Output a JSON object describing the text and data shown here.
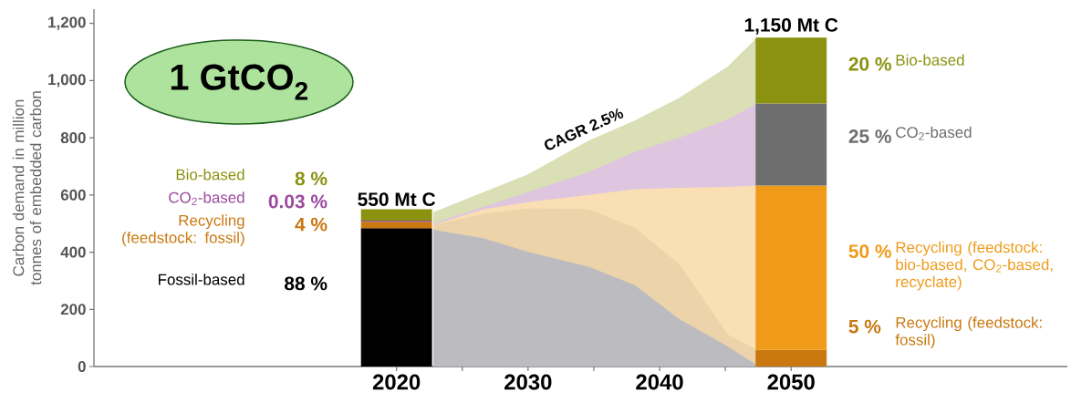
{
  "chart_data": {
    "type": "bar",
    "ylabel": "Carbon demand in million tonnes of embedded carbon",
    "xlim": [
      1997,
      2071
    ],
    "ylim": [
      0,
      1250
    ],
    "xticks": [
      2020,
      {
        "value": 2025,
        "label": null
      },
      2030,
      {
        "value": 2035,
        "label": null
      },
      2040,
      {
        "value": 2045,
        "label": null
      },
      2050
    ],
    "yticks": [
      0,
      200,
      400,
      600,
      800,
      {
        "value": 1000,
        "label": "1,000"
      },
      {
        "value": 1200,
        "label": "1,200"
      }
    ],
    "annotations": [
      "88 %",
      "4 %",
      "0.03 %",
      "8 %",
      "5 %",
      "50 %",
      "25 %",
      "20 %",
      {
        "text": "550 Mt C",
        "x": 2020,
        "y": 550
      },
      {
        "text": "1,150 Mt C",
        "x": 2050,
        "y": 1150
      },
      {
        "text": "CAGR 2.5%",
        "x": 2034.6,
        "y": 790
      },
      "1 GtCO$_{2}$"
    ],
    "series": [
      {
        "type": "area",
        "x": [
          2022.8,
          2030,
          2034.6,
          2038.1,
          2041.5,
          2045.2,
          2047.4
        ],
        "values": [
          540,
          672,
          790,
          860,
          940,
          1050,
          1150
        ],
        "color": "#dadfb6"
      },
      {
        "type": "area",
        "x": [
          2022.8,
          2034.6,
          2038.1,
          2041.5,
          2045.2,
          2047.4
        ],
        "values": [
          500,
          680,
          750,
          800,
          865,
          920
        ],
        "color": "#dfc6e0"
      },
      {
        "type": "area",
        "x": [
          2022.8,
          2026.6,
          2030,
          2034.6,
          2038.1,
          2041.5,
          2045.2,
          2047.4
        ],
        "values": [
          495,
          550,
          575,
          600,
          620,
          625,
          628,
          633
        ],
        "color": "#f9dfb3"
      },
      {
        "type": "area",
        "x": [
          2022.8,
          2026.6,
          2030,
          2034.6,
          2038.1,
          2041.5,
          2045.2,
          2047.4
        ],
        "values": [
          495,
          534,
          553,
          550,
          486,
          358,
          112,
          58
        ],
        "color": "#ecd3a9"
      },
      {
        "type": "area",
        "x": [
          2022.8,
          2026.6,
          2030,
          2034.6,
          2038.1,
          2041.5,
          2045.2,
          2047.4
        ],
        "values": [
          478,
          449,
          401,
          349,
          285,
          166,
          70,
          5
        ],
        "color": "#bcbcc0"
      },
      {
        "name": "Fossil-based",
        "x": [
          2020
        ],
        "values": [
          484
        ],
        "base": [
          0
        ],
        "color": "#000000"
      },
      {
        "name": "Recycling (feedstock: fossil)",
        "x": [
          2020,
          2050
        ],
        "values": [
          22,
          58
        ],
        "base": [
          484,
          0
        ],
        "color": "#c8780f"
      },
      {
        "name": "Recycling (feedstock: bio-based, CO$_{2}$-based, recyclate)",
        "x": [
          2050
        ],
        "values": [
          575
        ],
        "base": [
          58
        ],
        "color": "#ef9b19"
      },
      {
        "name": "CO$_{2}$-based",
        "x": [
          2020,
          2050
        ],
        "values": [
          4,
          287
        ],
        "base": [
          506,
          633
        ],
        "colors": [
          "#9b4a9e",
          "#6e6e6e"
        ]
      },
      {
        "name": "Bio-based",
        "x": [
          2020,
          2050
        ],
        "values": [
          40,
          230
        ],
        "base": [
          510,
          920
        ],
        "color": "#8a9210"
      }
    ]
  }
}
